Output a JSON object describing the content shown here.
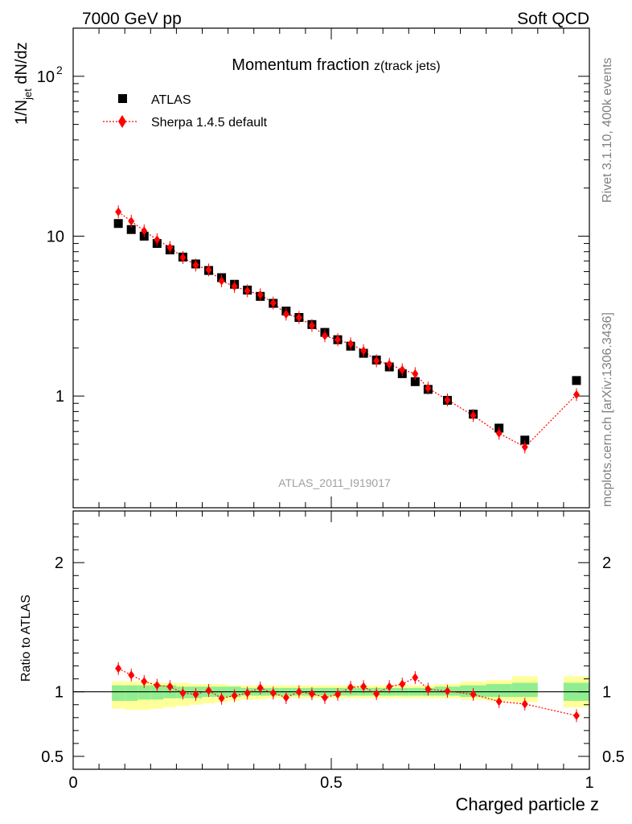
{
  "header": {
    "left": "7000 GeV pp",
    "right": "Soft QCD"
  },
  "side_labels": {
    "rivet": "Rivet 3.1.10,  400k events",
    "mcplots": "mcplots.cern.ch [arXiv:1306.3436]"
  },
  "watermark": "ATLAS_2011_I919017",
  "title": {
    "main": "Momentum fraction ",
    "sub": "z(track jets)"
  },
  "legend": {
    "data": "ATLAS",
    "mc": "Sherpa 1.4.5 default"
  },
  "colors": {
    "mc": "#ff0000",
    "band_inner": "#90ee90",
    "band_outer": "#ffff99"
  },
  "chart_data": [
    {
      "type": "scatter",
      "name": "main",
      "yscale": "log",
      "ylabel": "1/N_jet dN/dz",
      "ylabel_parts": {
        "a": "1/N",
        "sub": "jet",
        "b": " dN/dz"
      },
      "xlim": [
        0,
        1
      ],
      "ylim": [
        0.2,
        200
      ],
      "yticks": [
        {
          "v": 1,
          "label": "1"
        },
        {
          "v": 10,
          "label": "10"
        },
        {
          "v": 100,
          "label": "10",
          "exp": "2"
        }
      ],
      "series": [
        {
          "name": "ATLAS",
          "x": [
            0.0875,
            0.1125,
            0.1375,
            0.1625,
            0.1875,
            0.2125,
            0.2375,
            0.2625,
            0.2875,
            0.3125,
            0.3375,
            0.3625,
            0.3875,
            0.4125,
            0.4375,
            0.4625,
            0.4875,
            0.5125,
            0.5375,
            0.5625,
            0.5875,
            0.6125,
            0.6375,
            0.6625,
            0.6875,
            0.725,
            0.775,
            0.825,
            0.875,
            0.975
          ],
          "y": [
            12.0,
            11.0,
            10.0,
            9.0,
            8.2,
            7.4,
            6.7,
            6.1,
            5.5,
            5.0,
            4.6,
            4.2,
            3.8,
            3.4,
            3.1,
            2.8,
            2.5,
            2.25,
            2.05,
            1.85,
            1.68,
            1.52,
            1.38,
            1.23,
            1.1,
            0.94,
            0.77,
            0.63,
            0.53,
            1.25
          ]
        },
        {
          "name": "Sherpa 1.4.5 default",
          "x": [
            0.0875,
            0.1125,
            0.1375,
            0.1625,
            0.1875,
            0.2125,
            0.2375,
            0.2625,
            0.2875,
            0.3125,
            0.3375,
            0.3625,
            0.3875,
            0.4125,
            0.4375,
            0.4625,
            0.4875,
            0.5125,
            0.5375,
            0.5625,
            0.5875,
            0.6125,
            0.6375,
            0.6625,
            0.6875,
            0.725,
            0.775,
            0.825,
            0.875,
            0.975
          ],
          "y": [
            14.2,
            12.4,
            10.8,
            9.5,
            8.5,
            7.35,
            6.6,
            6.15,
            5.25,
            4.85,
            4.55,
            4.3,
            3.82,
            3.25,
            3.1,
            2.76,
            2.38,
            2.25,
            2.12,
            1.92,
            1.66,
            1.58,
            1.46,
            1.38,
            1.12,
            0.945,
            0.755,
            0.585,
            0.48,
            1.02
          ]
        }
      ]
    },
    {
      "type": "scatter",
      "name": "ratio",
      "xlabel": "Charged particle z",
      "ylabel": "Ratio to ATLAS",
      "xlim": [
        0,
        1
      ],
      "ylim": [
        0.4,
        2.4
      ],
      "yticks": [
        {
          "v": 0.5,
          "label": "0.5"
        },
        {
          "v": 1,
          "label": "1"
        },
        {
          "v": 2,
          "label": "2"
        }
      ],
      "xticks": [
        {
          "v": 0,
          "label": "0"
        },
        {
          "v": 0.5,
          "label": "0.5"
        },
        {
          "v": 1,
          "label": "1"
        }
      ],
      "series": [
        {
          "name": "Sherpa 1.4.5 default / ATLAS",
          "x": [
            0.0875,
            0.1125,
            0.1375,
            0.1625,
            0.1875,
            0.2125,
            0.2375,
            0.2625,
            0.2875,
            0.3125,
            0.3375,
            0.3625,
            0.3875,
            0.4125,
            0.4375,
            0.4625,
            0.4875,
            0.5125,
            0.5375,
            0.5625,
            0.5875,
            0.6125,
            0.6375,
            0.6625,
            0.6875,
            0.725,
            0.775,
            0.825,
            0.875,
            0.975
          ],
          "y": [
            1.18,
            1.13,
            1.08,
            1.05,
            1.04,
            0.99,
            0.98,
            1.01,
            0.95,
            0.97,
            0.99,
            1.03,
            0.99,
            0.955,
            1.0,
            0.985,
            0.955,
            0.98,
            1.035,
            1.04,
            0.985,
            1.04,
            1.06,
            1.11,
            1.02,
            1.005,
            0.98,
            0.925,
            0.905,
            0.815
          ]
        }
      ],
      "bands": {
        "edges": [
          0.075,
          0.1,
          0.125,
          0.15,
          0.175,
          0.2,
          0.225,
          0.25,
          0.275,
          0.3,
          0.325,
          0.35,
          0.375,
          0.4,
          0.425,
          0.45,
          0.475,
          0.5,
          0.525,
          0.55,
          0.575,
          0.6,
          0.625,
          0.65,
          0.675,
          0.7,
          0.75,
          0.8,
          0.85,
          0.9,
          0.95,
          1.0
        ],
        "inner": [
          [
            0.93,
            1.05
          ],
          [
            0.93,
            1.05
          ],
          [
            0.94,
            1.05
          ],
          [
            0.94,
            1.05
          ],
          [
            0.95,
            1.05
          ],
          [
            0.95,
            1.04
          ],
          [
            0.95,
            1.04
          ],
          [
            0.96,
            1.04
          ],
          [
            0.96,
            1.04
          ],
          [
            0.96,
            1.04
          ],
          [
            0.97,
            1.03
          ],
          [
            0.97,
            1.03
          ],
          [
            0.97,
            1.03
          ],
          [
            0.97,
            1.03
          ],
          [
            0.97,
            1.03
          ],
          [
            0.97,
            1.03
          ],
          [
            0.97,
            1.03
          ],
          [
            0.97,
            1.03
          ],
          [
            0.97,
            1.03
          ],
          [
            0.97,
            1.03
          ],
          [
            0.97,
            1.03
          ],
          [
            0.97,
            1.03
          ],
          [
            0.97,
            1.03
          ],
          [
            0.97,
            1.03
          ],
          [
            0.97,
            1.03
          ],
          [
            0.97,
            1.04
          ],
          [
            0.96,
            1.05
          ],
          [
            0.96,
            1.06
          ],
          [
            0.96,
            1.07
          ],
          null,
          [
            0.93,
            1.07
          ]
        ],
        "outer": [
          [
            0.87,
            1.08
          ],
          [
            0.86,
            1.08
          ],
          [
            0.86,
            1.08
          ],
          [
            0.87,
            1.07
          ],
          [
            0.88,
            1.07
          ],
          [
            0.89,
            1.07
          ],
          [
            0.9,
            1.06
          ],
          [
            0.91,
            1.06
          ],
          [
            0.92,
            1.06
          ],
          [
            0.93,
            1.05
          ],
          [
            0.94,
            1.05
          ],
          [
            0.94,
            1.05
          ],
          [
            0.95,
            1.05
          ],
          [
            0.95,
            1.05
          ],
          [
            0.95,
            1.05
          ],
          [
            0.95,
            1.05
          ],
          [
            0.95,
            1.05
          ],
          [
            0.95,
            1.05
          ],
          [
            0.95,
            1.05
          ],
          [
            0.95,
            1.05
          ],
          [
            0.95,
            1.05
          ],
          [
            0.95,
            1.05
          ],
          [
            0.95,
            1.05
          ],
          [
            0.95,
            1.05
          ],
          [
            0.95,
            1.05
          ],
          [
            0.95,
            1.06
          ],
          [
            0.94,
            1.08
          ],
          [
            0.93,
            1.09
          ],
          [
            0.92,
            1.12
          ],
          null,
          [
            0.88,
            1.12
          ]
        ]
      }
    }
  ]
}
